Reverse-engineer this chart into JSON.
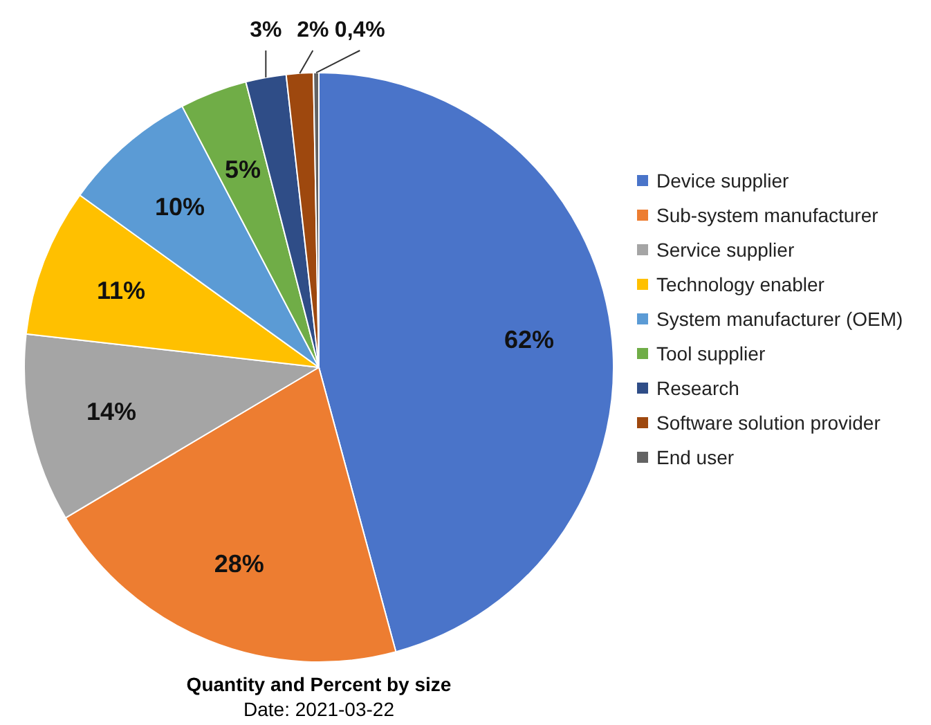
{
  "chart_data": {
    "type": "pie",
    "title": "Quantity and Percent by size",
    "subtitle": "Date: 2021-03-22",
    "categories": [
      "Device supplier",
      "Sub-system manufacturer",
      "Service supplier",
      "Technology enabler",
      "System manufacturer (OEM)",
      "Tool supplier",
      "Research",
      "Software solution provider",
      "End user"
    ],
    "values": [
      62,
      28,
      14,
      11,
      10,
      5,
      3,
      2,
      0.4
    ],
    "value_labels": [
      "62%",
      "28%",
      "14%",
      "11%",
      "10%",
      "5%",
      "3%",
      "2%",
      "0,4%"
    ],
    "colors": [
      "#4a74c9",
      "#ed7d31",
      "#a5a5a5",
      "#ffc000",
      "#5b9bd5",
      "#70ad47",
      "#2f4d87",
      "#9e480e",
      "#636363"
    ],
    "legend": "right"
  }
}
